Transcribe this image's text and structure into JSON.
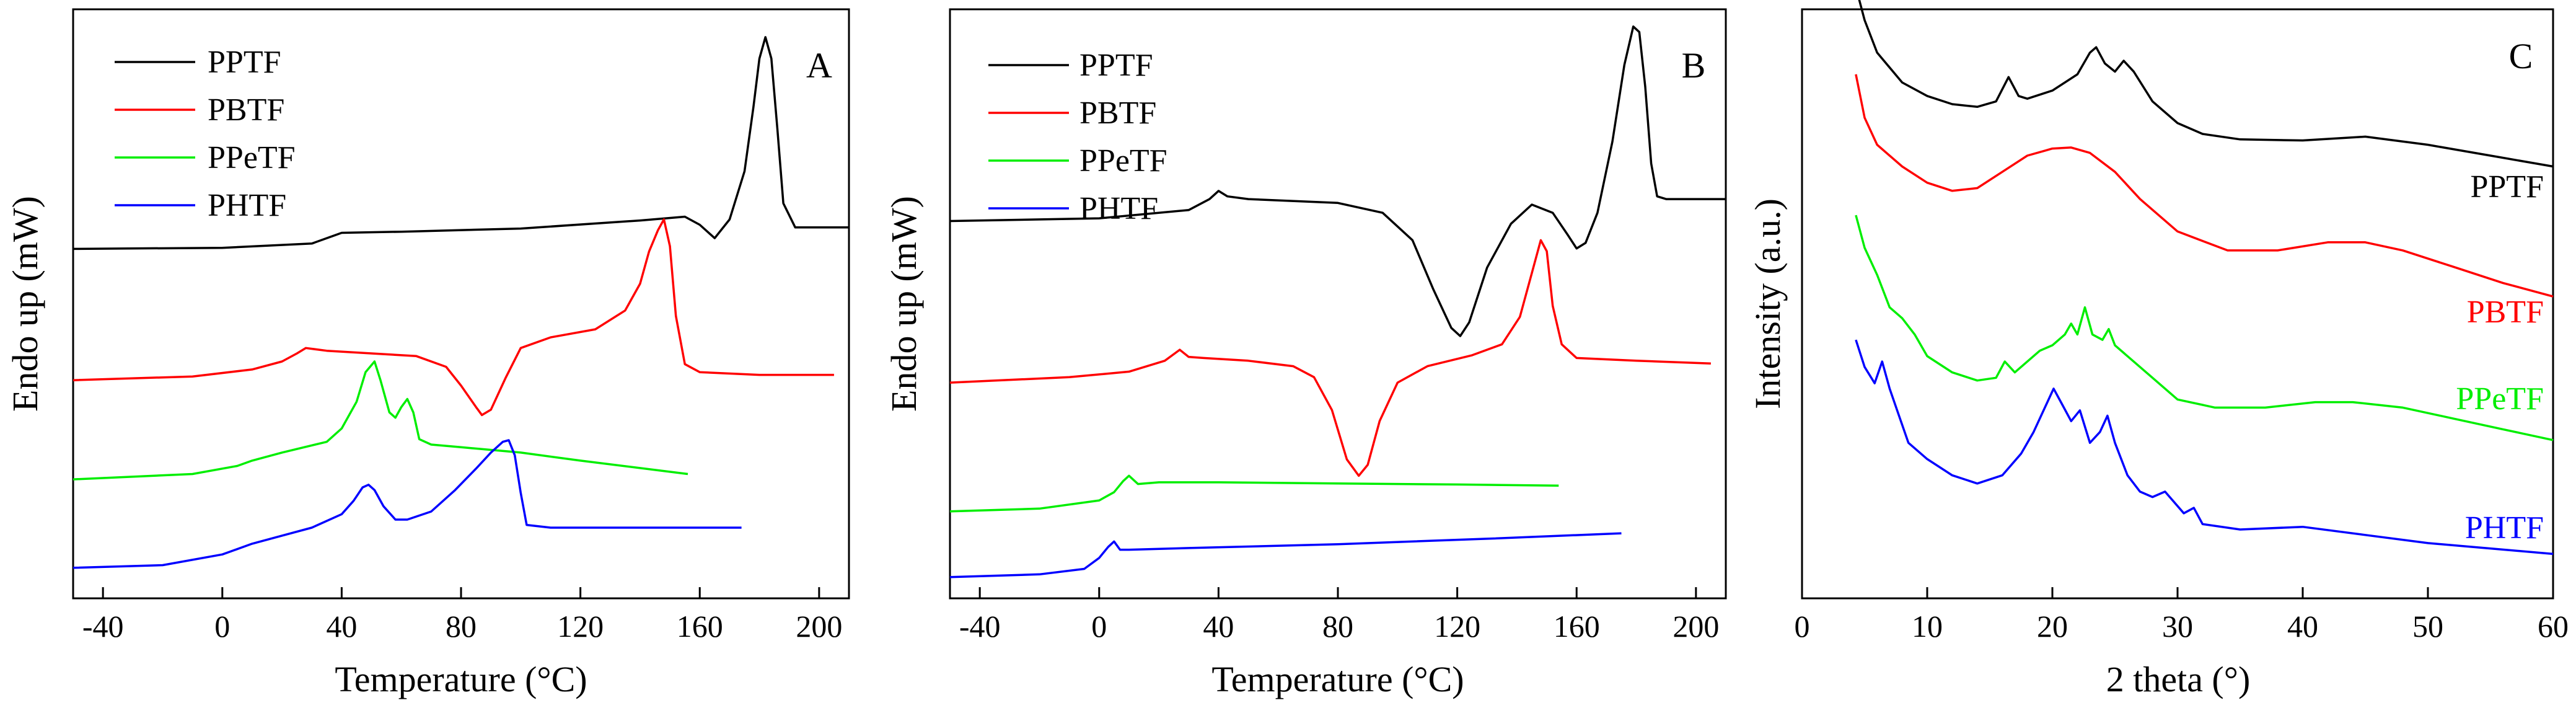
{
  "chart_data": [
    {
      "panel": "A",
      "type": "line",
      "xlabel": "Temperature (°C)",
      "ylabel": "Endo up (mW)",
      "xlim": [
        -50,
        210
      ],
      "ylim": [
        0,
        100
      ],
      "xticks": [
        -40,
        0,
        40,
        80,
        120,
        160,
        200
      ],
      "xtick_labels": [
        "-40",
        "0",
        "40",
        "80",
        "120",
        "160",
        "200"
      ],
      "legend": [
        "PPTF",
        "PBTF",
        "PPeTF",
        "PHTF"
      ],
      "legend_position": "top-left",
      "series": [
        {
          "name": "PPTF",
          "color": "#000000",
          "x": [
            -50,
            0,
            30,
            40,
            60,
            100,
            140,
            155,
            160,
            165,
            170,
            175,
            178,
            180,
            182,
            184,
            186,
            188,
            192,
            200,
            210
          ],
          "y": [
            57.5,
            57.7,
            58.5,
            60.5,
            60.7,
            61.3,
            62.8,
            63.5,
            62,
            59.5,
            63,
            72,
            84,
            93,
            97,
            93,
            80,
            66,
            61.5,
            61.5,
            61.5
          ]
        },
        {
          "name": "PBTF",
          "color": "#ff0000",
          "x": [
            -50,
            -10,
            10,
            20,
            25,
            28,
            35,
            50,
            65,
            75,
            80,
            85,
            87,
            90,
            95,
            100,
            110,
            125,
            135,
            140,
            143,
            146,
            148,
            150,
            152,
            155,
            160,
            180,
            205
          ],
          "y": [
            33,
            33.7,
            35,
            36.5,
            38,
            39,
            38.5,
            38,
            37.5,
            35.5,
            32,
            28,
            26.5,
            27.5,
            33.5,
            39,
            41,
            42.5,
            46,
            51,
            57,
            61,
            63,
            58,
            45,
            36,
            34.5,
            34,
            34
          ]
        },
        {
          "name": "PPeTF",
          "color": "#00ee00",
          "x": [
            -50,
            -10,
            5,
            10,
            20,
            35,
            40,
            45,
            48,
            51,
            53,
            56,
            58,
            60,
            62,
            64,
            66,
            70,
            80,
            100,
            120,
            156
          ],
          "y": [
            14.5,
            15.5,
            17,
            18,
            19.5,
            21.5,
            24,
            29,
            34.5,
            36.5,
            33,
            27,
            26,
            28,
            29.5,
            27,
            22,
            21,
            20.5,
            19.5,
            18,
            15.5
          ]
        },
        {
          "name": "PHTF",
          "color": "#0000ff",
          "x": [
            -50,
            -20,
            0,
            10,
            20,
            30,
            40,
            44,
            47,
            49,
            51,
            54,
            58,
            62,
            70,
            78,
            85,
            90,
            94,
            96,
            98,
            100,
            102,
            110,
            130,
            174
          ],
          "y": [
            -2,
            -1.5,
            0.5,
            2.5,
            4,
            5.5,
            8,
            10.5,
            13,
            13.5,
            12.5,
            9.5,
            7,
            7,
            8.5,
            12.5,
            16.5,
            19.5,
            21.5,
            21.8,
            19,
            12,
            6,
            5.5,
            5.5,
            5.5
          ]
        }
      ]
    },
    {
      "panel": "B",
      "type": "line",
      "xlabel": "Temperature (°C)",
      "ylabel": "Endo up (mW)",
      "xlim": [
        -50,
        210
      ],
      "ylim": [
        0,
        100
      ],
      "xticks": [
        -40,
        0,
        40,
        80,
        120,
        160,
        200
      ],
      "xtick_labels": [
        "-40",
        "0",
        "40",
        "80",
        "120",
        "160",
        "200"
      ],
      "legend": [
        "PPTF",
        "PBTF",
        "PPeTF",
        "PHTF"
      ],
      "legend_position": "top-left",
      "series": [
        {
          "name": "PPTF",
          "color": "#000000",
          "x": [
            -50,
            0,
            30,
            37,
            40,
            43,
            50,
            80,
            95,
            105,
            112,
            118,
            121,
            124,
            130,
            138,
            145,
            152,
            157,
            160,
            163,
            167,
            172,
            176,
            179,
            181,
            183,
            185,
            187,
            190,
            195,
            210
          ],
          "y": [
            63.5,
            64,
            65.5,
            67.5,
            69,
            68,
            67.5,
            66.8,
            65,
            60,
            51,
            44,
            42.5,
            45,
            55,
            63,
            66.5,
            65,
            61,
            58.5,
            59.5,
            65,
            78,
            92,
            99,
            98,
            88,
            74,
            68,
            67.5,
            67.5,
            67.5
          ]
        },
        {
          "name": "PBTF",
          "color": "#ff0000",
          "x": [
            -50,
            -10,
            10,
            22,
            27,
            30,
            35,
            50,
            65,
            72,
            78,
            83,
            87,
            90,
            94,
            100,
            110,
            125,
            135,
            141,
            145,
            148,
            150,
            152,
            155,
            160,
            180,
            205
          ],
          "y": [
            34,
            35,
            36,
            38,
            40,
            38.7,
            38.5,
            38,
            37,
            35,
            29,
            20,
            17,
            19,
            27,
            34,
            37,
            39,
            41,
            46,
            54,
            60,
            58,
            48,
            41,
            38.5,
            38,
            37.5
          ]
        },
        {
          "name": "PPeTF",
          "color": "#00ee00",
          "x": [
            -50,
            -20,
            0,
            5,
            8,
            10,
            13,
            20,
            40,
            80,
            120,
            154
          ],
          "y": [
            10.5,
            11,
            12.5,
            14,
            16,
            17,
            15.5,
            15.8,
            15.8,
            15.6,
            15.4,
            15.2
          ]
        },
        {
          "name": "PHTF",
          "color": "#0000ff",
          "x": [
            -50,
            -20,
            -5,
            0,
            3,
            5,
            7,
            10,
            30,
            80,
            130,
            175
          ],
          "y": [
            -1.5,
            -1,
            0,
            2,
            4,
            5,
            3.5,
            3.5,
            3.8,
            4.5,
            5.5,
            6.5
          ]
        }
      ]
    },
    {
      "panel": "C",
      "type": "line",
      "xlabel": "2 theta  (°)",
      "ylabel": "Intensity  (a.u.)",
      "xlim": [
        0,
        60
      ],
      "ylim": [
        0,
        100
      ],
      "xticks": [
        0,
        10,
        20,
        30,
        40,
        50,
        60
      ],
      "xtick_labels": [
        "0",
        "10",
        "20",
        "30",
        "40",
        "50",
        "60"
      ],
      "legend": [],
      "series": [
        {
          "name": "PPTF",
          "color": "#000000",
          "x": [
            4.2,
            5,
            6,
            8,
            10,
            12,
            14,
            15.5,
            16.5,
            17.3,
            18,
            20,
            22,
            23,
            23.5,
            24.2,
            25,
            25.7,
            26.5,
            28,
            30,
            32,
            35,
            40,
            45,
            50,
            55,
            60
          ],
          "y": [
            105,
            98,
            92,
            86.5,
            84,
            82.5,
            82,
            83,
            87.5,
            84,
            83.5,
            85,
            88,
            92,
            93,
            90,
            88.5,
            90.5,
            88.5,
            83,
            79,
            77,
            76,
            75.8,
            76.5,
            75,
            73,
            71
          ]
        },
        {
          "name": "PBTF",
          "color": "#ff0000",
          "x": [
            4.3,
            5,
            6,
            8,
            10,
            12,
            14,
            16,
            18,
            20,
            21.5,
            23,
            25,
            27,
            30,
            34,
            38,
            42,
            45,
            48,
            52,
            56,
            60
          ],
          "y": [
            88,
            80,
            75,
            71,
            68,
            66.5,
            67,
            70,
            73,
            74.3,
            74.5,
            73.5,
            70,
            65,
            59,
            55.5,
            55.5,
            57,
            57,
            55.5,
            52.5,
            49.5,
            47
          ]
        },
        {
          "name": "PPeTF",
          "color": "#00ee00",
          "x": [
            4.3,
            5,
            6,
            7,
            8,
            9,
            10,
            12,
            14,
            15.5,
            16.2,
            17,
            18,
            19,
            20,
            21,
            21.5,
            22,
            22.6,
            23.2,
            24,
            24.5,
            25,
            26,
            28,
            30,
            33,
            37,
            41,
            44,
            48,
            52,
            56,
            60
          ],
          "y": [
            62,
            56,
            51,
            45,
            43,
            40,
            36,
            33,
            31.5,
            32,
            35,
            33,
            35,
            37,
            38,
            40,
            42,
            40,
            45,
            40,
            39,
            41,
            38,
            36,
            32,
            28,
            26.5,
            26.5,
            27.5,
            27.5,
            26.5,
            24.5,
            22.5,
            20.5
          ]
        },
        {
          "name": "PHTF",
          "color": "#0000ff",
          "x": [
            4.3,
            5,
            5.8,
            6.4,
            7,
            7.6,
            8.5,
            10,
            12,
            14,
            16,
            17.5,
            18.5,
            19.5,
            20.1,
            20.8,
            21.5,
            22.2,
            23,
            23.8,
            24.4,
            25,
            26,
            27,
            28,
            29,
            30.5,
            31.3,
            32,
            35,
            40,
            45,
            50,
            55,
            60
          ],
          "y": [
            39,
            34,
            31,
            35,
            30,
            26,
            20,
            17,
            14,
            12.5,
            14,
            18,
            22,
            27,
            30,
            27,
            24,
            26,
            20,
            22,
            25,
            20,
            14,
            11,
            10,
            11,
            7,
            8,
            5,
            4,
            4.5,
            3,
            1.5,
            0.5,
            -0.5
          ]
        }
      ],
      "curve_labels": [
        "PPTF",
        "PBTF",
        "PPeTF",
        "PHTF"
      ]
    }
  ]
}
